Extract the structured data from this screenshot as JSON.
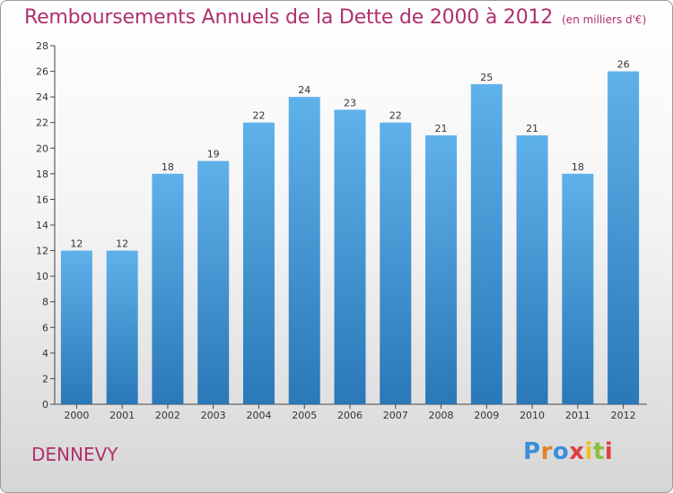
{
  "header": {
    "title": "Remboursements Annuels de la Dette de 2000 à 2012",
    "unit": "(en milliers d'€)"
  },
  "footer": {
    "commune": "DENNEVY",
    "logo_text": "Proxiti"
  },
  "colors": {
    "title": "#b0306e",
    "bar_top": "#5fb1ea",
    "bar_bottom": "#2a78b8",
    "logo": [
      "#3a8fd8",
      "#e0822a",
      "#3a8fd8",
      "#e04040",
      "#f0c020",
      "#8ac03a",
      "#e04040"
    ]
  },
  "chart_data": {
    "type": "bar",
    "title": "Remboursements Annuels de la Dette de 2000 à 2012",
    "xlabel": "",
    "ylabel": "",
    "categories": [
      "2000",
      "2001",
      "2002",
      "2003",
      "2004",
      "2005",
      "2006",
      "2007",
      "2008",
      "2009",
      "2010",
      "2011",
      "2012"
    ],
    "values": [
      12,
      12,
      18,
      19,
      22,
      24,
      23,
      22,
      21,
      25,
      21,
      18,
      26
    ],
    "ylim": [
      0,
      28
    ],
    "yticks": [
      0,
      2,
      4,
      6,
      8,
      10,
      12,
      14,
      16,
      18,
      20,
      22,
      24,
      26,
      28
    ],
    "grid": false,
    "data_labels": true
  }
}
